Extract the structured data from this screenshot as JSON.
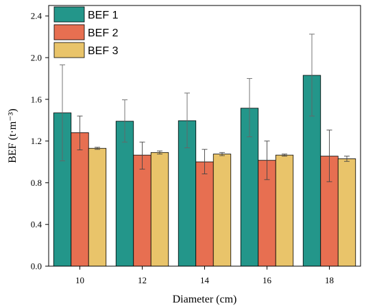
{
  "chart_data": {
    "type": "bar",
    "title": "",
    "xlabel": "Diameter (cm)",
    "ylabel": "BEF (t·m⁻³)",
    "categories": [
      "10",
      "12",
      "14",
      "16",
      "18"
    ],
    "ylim": [
      0,
      2.5
    ],
    "yticks": [
      "0.0",
      "0.4",
      "0.8",
      "1.2",
      "1.6",
      "2.0",
      "2.4"
    ],
    "grid": false,
    "legend_position": "top-left",
    "error_bars": true,
    "series": [
      {
        "name": "BEF 1",
        "color": "#23968A",
        "values": [
          1.47,
          1.39,
          1.395,
          1.515,
          1.83
        ],
        "error_low": [
          1.01,
          1.19,
          1.135,
          1.24,
          1.44
        ],
        "error_high": [
          1.93,
          1.595,
          1.66,
          1.8,
          2.225
        ]
      },
      {
        "name": "BEF 2",
        "color": "#E76F51",
        "values": [
          1.28,
          1.065,
          1.0,
          1.015,
          1.055
        ],
        "error_low": [
          1.115,
          0.93,
          0.885,
          0.83,
          0.81
        ],
        "error_high": [
          1.44,
          1.19,
          1.12,
          1.2,
          1.305
        ]
      },
      {
        "name": "BEF 3",
        "color": "#E9C46A",
        "values": [
          1.13,
          1.09,
          1.075,
          1.065,
          1.03
        ],
        "error_low": [
          1.12,
          1.075,
          1.06,
          1.055,
          1.005
        ],
        "error_high": [
          1.14,
          1.105,
          1.09,
          1.075,
          1.055
        ]
      }
    ]
  }
}
